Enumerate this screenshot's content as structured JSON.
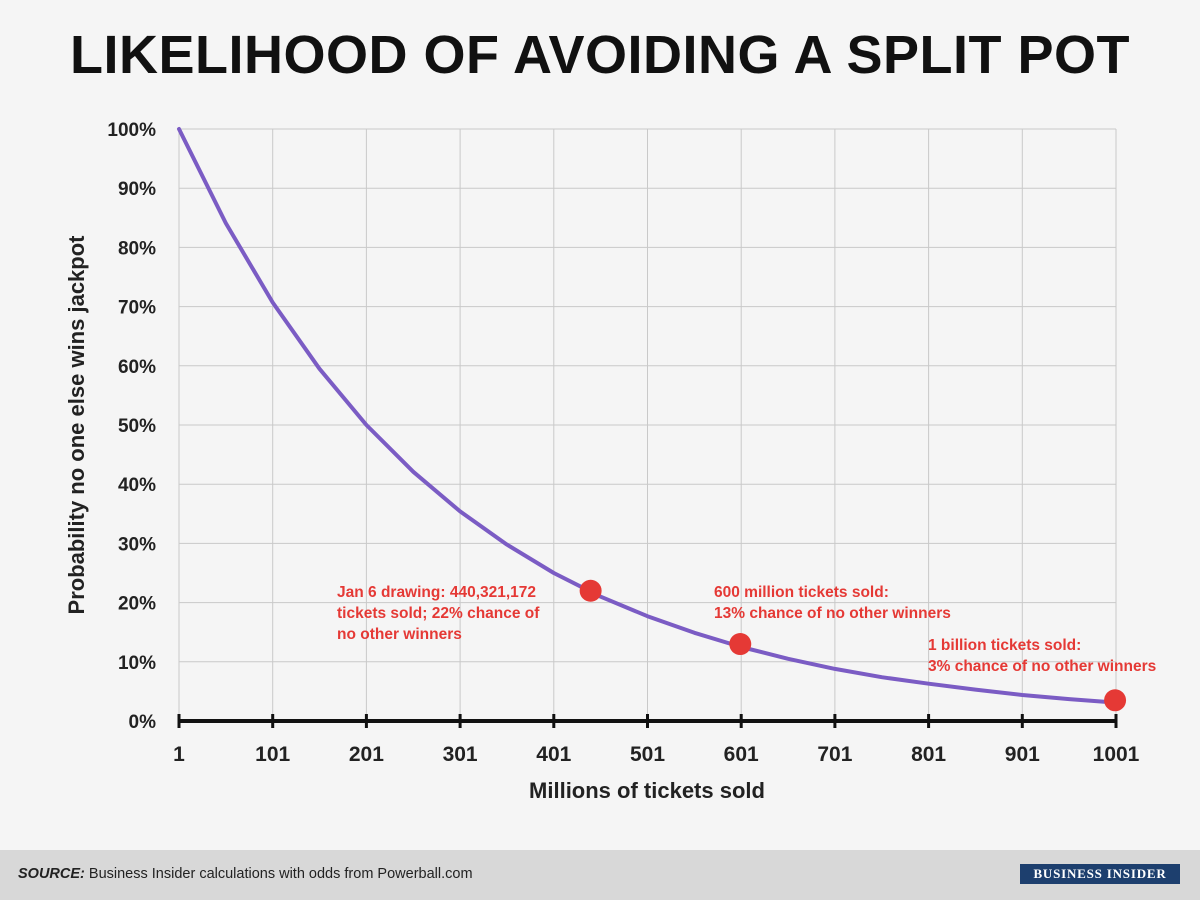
{
  "chart_data": {
    "type": "line",
    "title": "LIKELIHOOD OF AVOIDING A SPLIT POT",
    "xlabel": "Millions of tickets sold",
    "ylabel": "Probability no one else wins jackpot",
    "xlim": [
      1,
      1001
    ],
    "ylim": [
      0,
      100
    ],
    "x_ticks": [
      "1",
      "101",
      "201",
      "301",
      "401",
      "501",
      "601",
      "701",
      "801",
      "901",
      "1001"
    ],
    "y_ticks": [
      "0%",
      "10%",
      "20%",
      "30%",
      "40%",
      "50%",
      "60%",
      "70%",
      "80%",
      "90%",
      "100%"
    ],
    "grid": true,
    "series": [
      {
        "name": "Probability no one else wins jackpot",
        "color": "#7b5cc4",
        "x": [
          1,
          51,
          101,
          151,
          201,
          251,
          301,
          351,
          401,
          451,
          501,
          551,
          601,
          651,
          701,
          751,
          801,
          851,
          901,
          951,
          1001
        ],
        "values": [
          100,
          84.1,
          70.7,
          59.5,
          50.0,
          42.1,
          35.4,
          29.8,
          25.0,
          21.0,
          17.7,
          14.9,
          12.5,
          10.5,
          8.8,
          7.4,
          6.3,
          5.3,
          4.4,
          3.7,
          3.1
        ]
      }
    ],
    "highlights": [
      {
        "x": 440.3,
        "y": 22,
        "color": "#e53935"
      },
      {
        "x": 600,
        "y": 13,
        "color": "#e53935"
      },
      {
        "x": 1000,
        "y": 3.5,
        "color": "#e53935"
      }
    ],
    "annotations": [
      {
        "lines": [
          "Jan 6 drawing: 440,321,172",
          "tickets sold; 22% chance of",
          "no other winners"
        ],
        "color": "#e53935"
      },
      {
        "lines": [
          "600 million tickets sold:",
          "13% chance of no other winners"
        ],
        "color": "#e53935"
      },
      {
        "lines": [
          "1 billion tickets sold:",
          "3% chance of no other winners"
        ],
        "color": "#e53935"
      }
    ]
  },
  "footer": {
    "source_label": "SOURCE:",
    "source_text": " Business Insider calculations with odds from Powerball.com",
    "brand": "BUSINESS INSIDER"
  }
}
